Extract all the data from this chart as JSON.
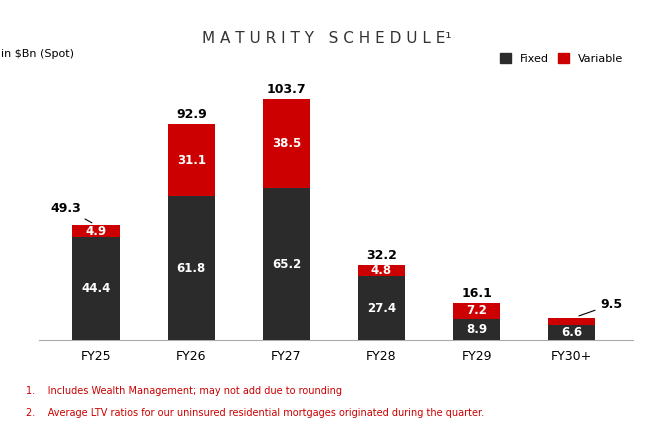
{
  "title": "M A T U R I T Y   S C H E D U L E¹",
  "ylabel": "in $Bn (Spot)",
  "categories": [
    "FY25",
    "FY26",
    "FY27",
    "FY28",
    "FY29",
    "FY30+"
  ],
  "fixed": [
    44.4,
    61.8,
    65.2,
    27.4,
    8.9,
    6.6
  ],
  "variable": [
    4.9,
    31.1,
    38.5,
    4.8,
    7.2,
    2.9
  ],
  "totals": [
    49.3,
    92.9,
    103.7,
    32.2,
    16.1,
    9.5
  ],
  "fixed_color": "#2b2b2b",
  "variable_color": "#cc0000",
  "title_bg_color": "#e8e8e8",
  "bar_width": 0.5,
  "ylim": [
    0,
    118
  ],
  "footnote1": "1.    Includes Wealth Management; may not add due to rounding",
  "footnote2": "2.    Average LTV ratios for our uninsured residential mortgages originated during the quarter.",
  "legend_fixed_label": "Fixed",
  "legend_variable_label": "Variable",
  "total_label_fontsize": 9,
  "bar_label_fontsize": 8.5,
  "footnote_color": "#cc0000"
}
